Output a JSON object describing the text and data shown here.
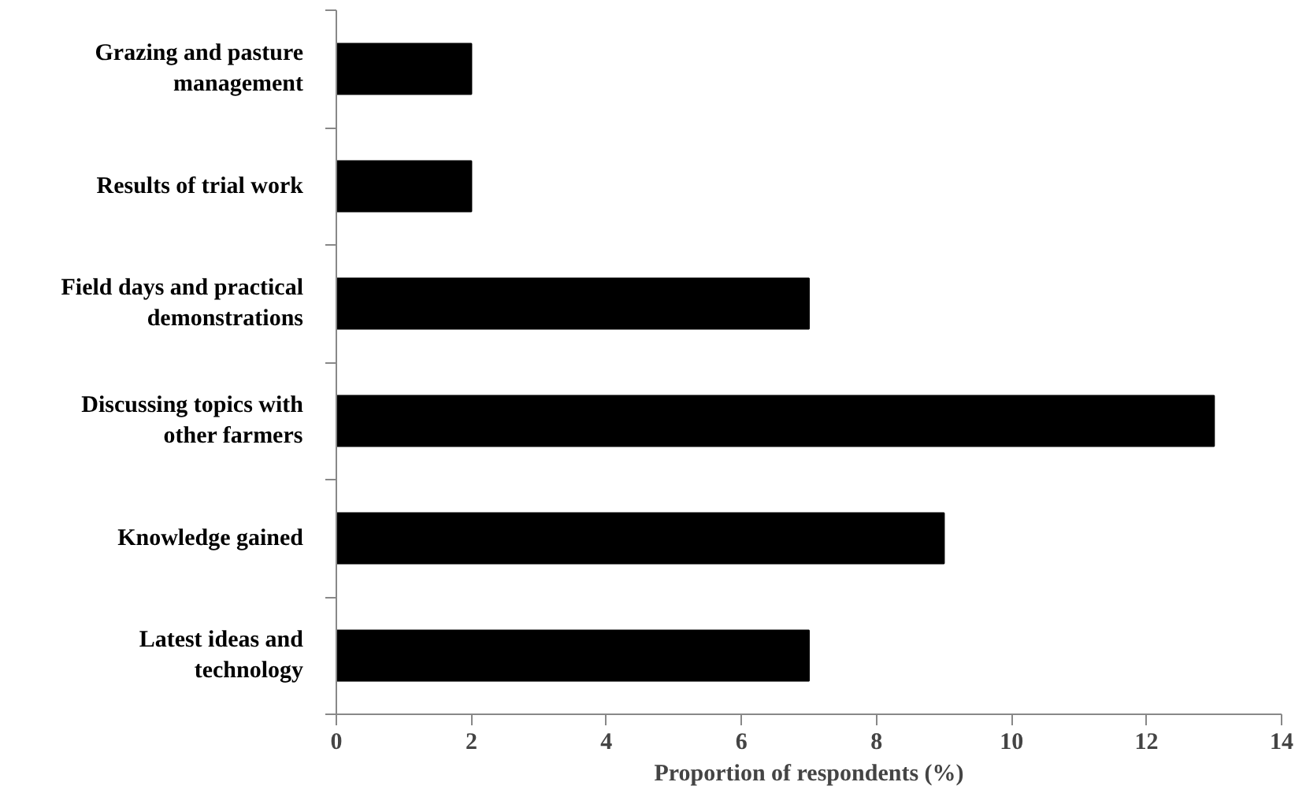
{
  "chart_data": {
    "type": "bar",
    "orientation": "horizontal",
    "xlabel": "Proportion of respondents (%)",
    "categories": [
      "Grazing and pasture management",
      "Results of trial work",
      "Field days and practical demonstrations",
      "Discussing topics with other farmers",
      "Knowledge gained",
      "Latest ideas and technology"
    ],
    "values": [
      2,
      2,
      7,
      13,
      9,
      7
    ],
    "color": "#000000",
    "xlim": [
      0,
      14
    ],
    "xticks": [
      0,
      2,
      4,
      6,
      8,
      10,
      12,
      14
    ],
    "grid": false
  }
}
